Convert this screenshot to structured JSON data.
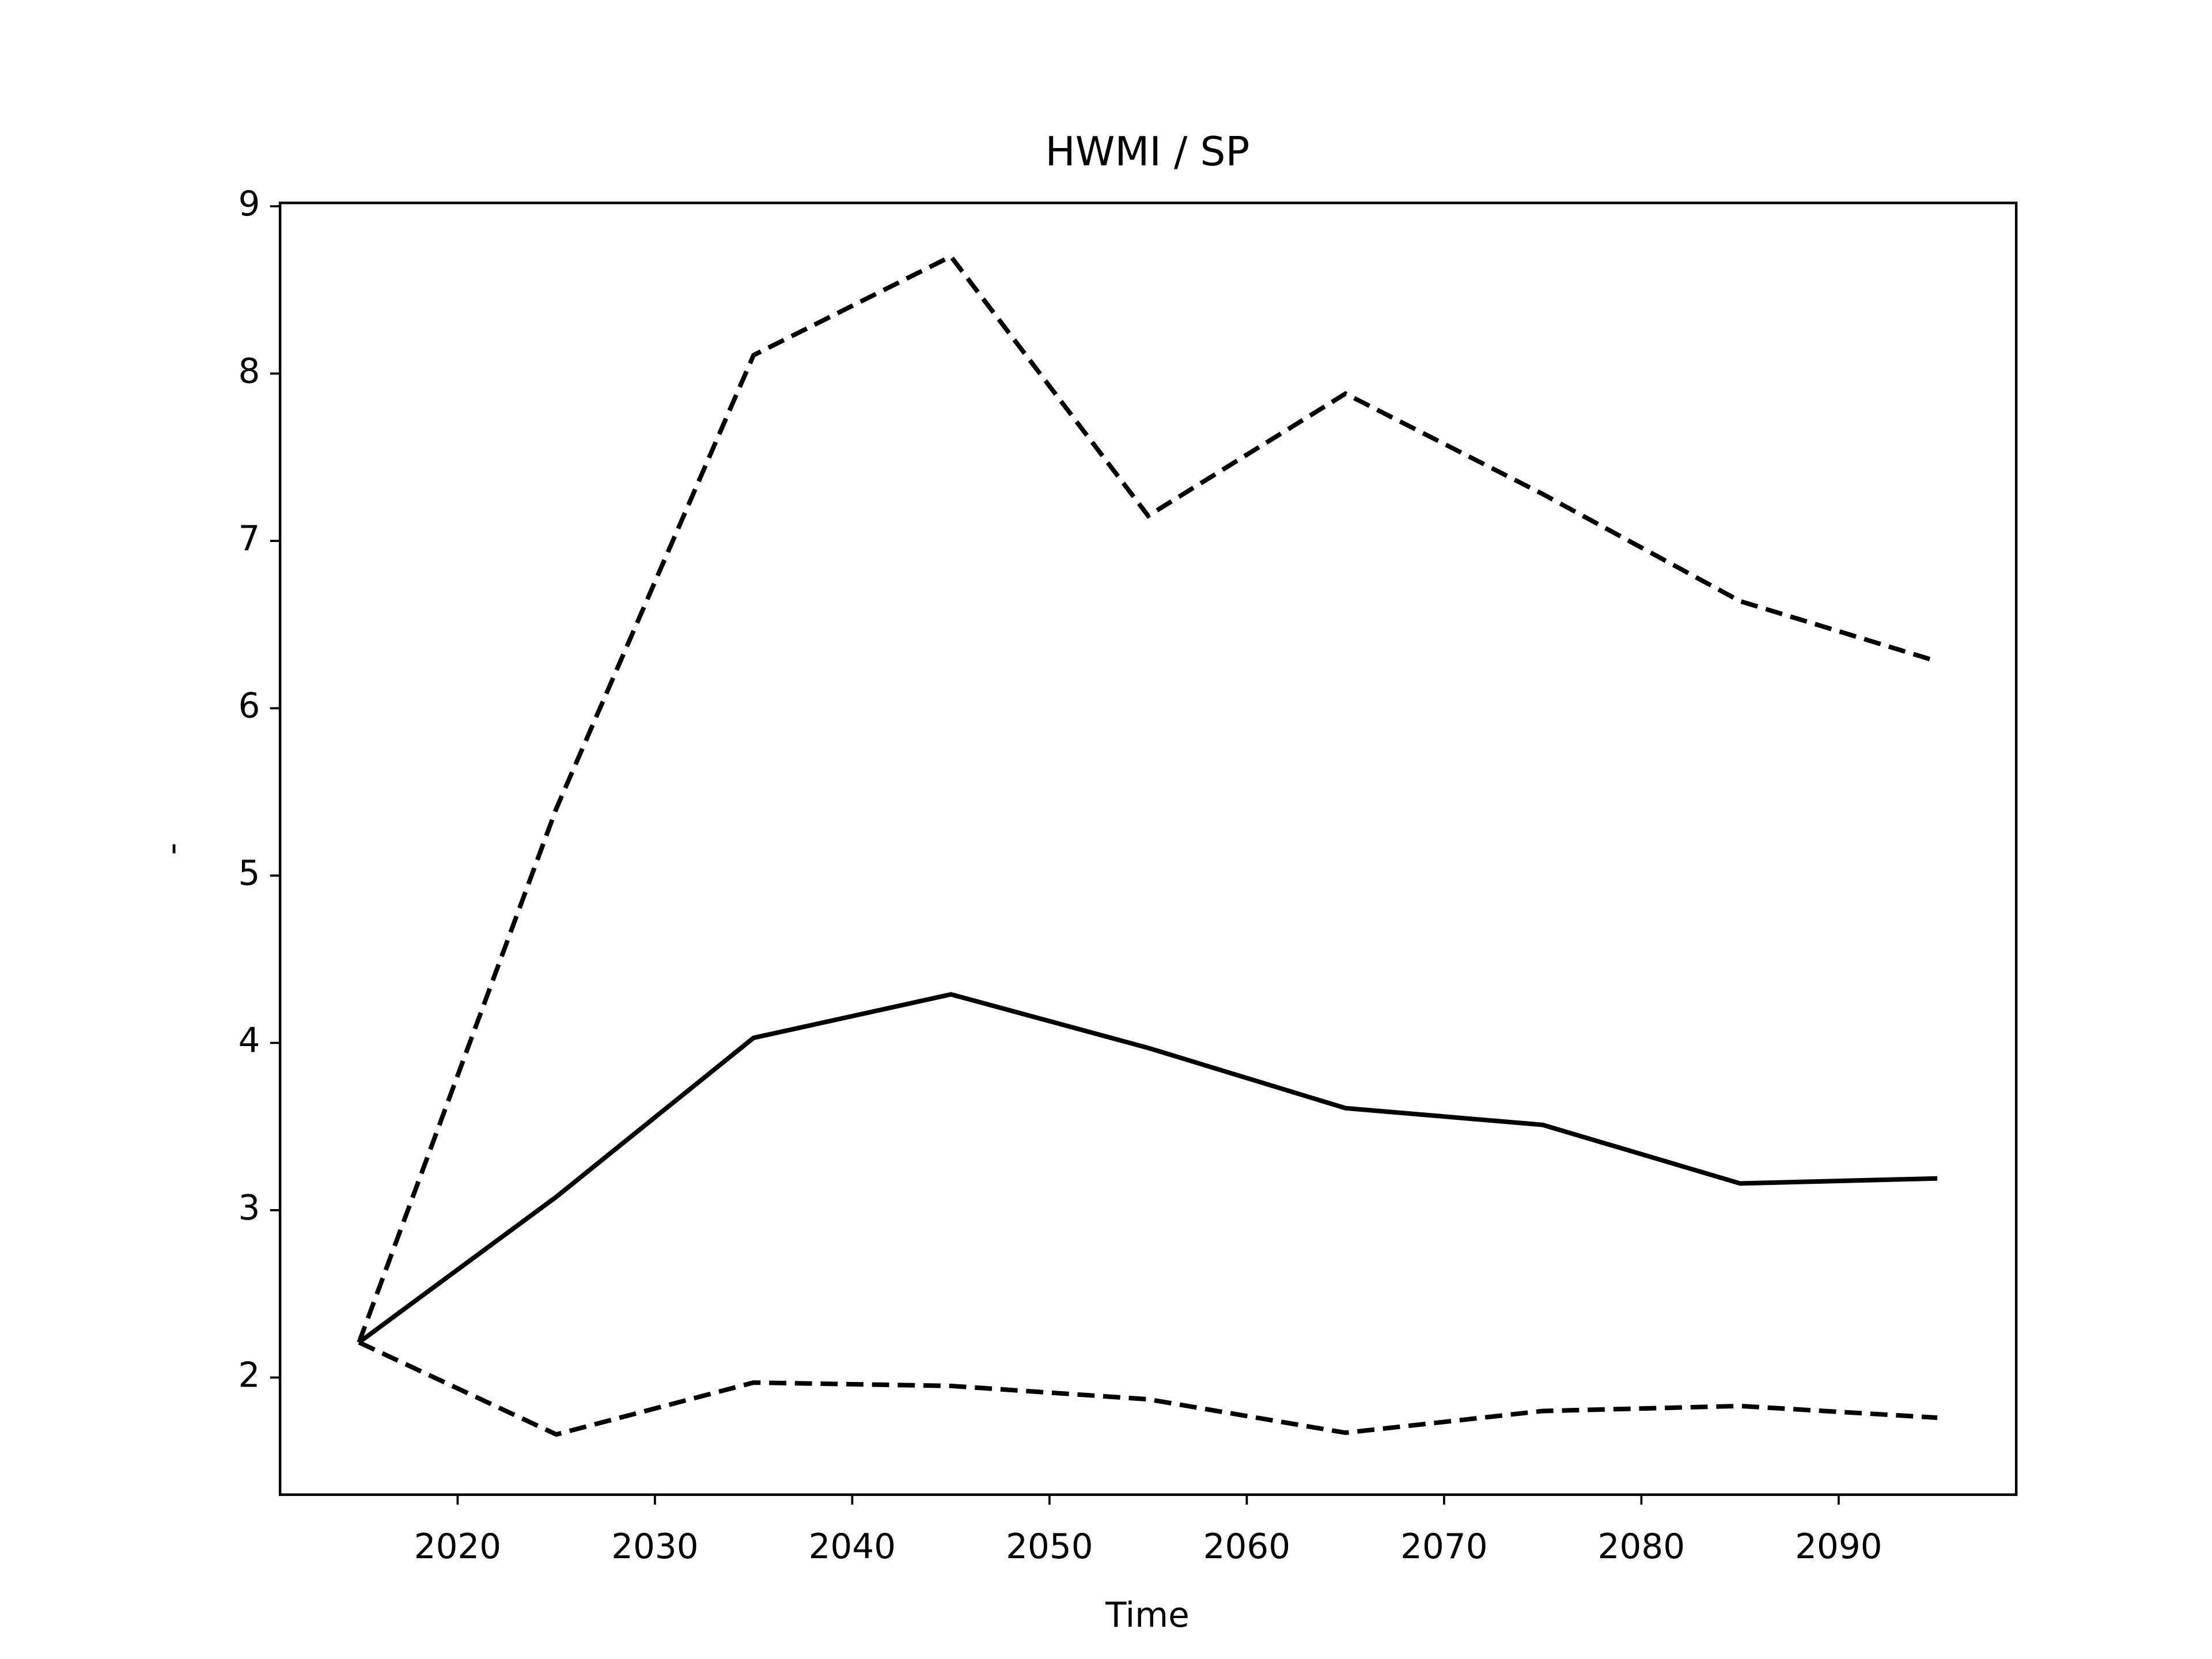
{
  "chart_data": {
    "type": "line",
    "title": "HWMI / SP",
    "xlabel": "Time",
    "ylabel": "-",
    "x": [
      2015,
      2025,
      2035,
      2045,
      2055,
      2065,
      2075,
      2085,
      2095
    ],
    "series": [
      {
        "color": "#000000",
        "linestyle": "solid",
        "values": [
          2.21,
          3.08,
          4.03,
          4.29,
          3.97,
          3.61,
          3.51,
          3.16,
          3.19
        ]
      },
      {
        "color": "#000000",
        "linestyle": "dashed",
        "values": [
          2.21,
          5.4,
          8.11,
          8.7,
          7.15,
          7.88,
          7.28,
          6.64,
          6.28
        ]
      },
      {
        "color": "#000000",
        "linestyle": "dashed",
        "values": [
          2.21,
          1.66,
          1.97,
          1.95,
          1.87,
          1.67,
          1.8,
          1.83,
          1.76
        ]
      }
    ],
    "xlim": [
      2011,
      2099
    ],
    "xticks": [
      2020,
      2030,
      2040,
      2050,
      2060,
      2070,
      2080,
      2090
    ],
    "ylim": [
      1.3,
      9.02
    ],
    "yticks": [
      2,
      3,
      4,
      5,
      6,
      7,
      8,
      9
    ],
    "grid": false
  }
}
